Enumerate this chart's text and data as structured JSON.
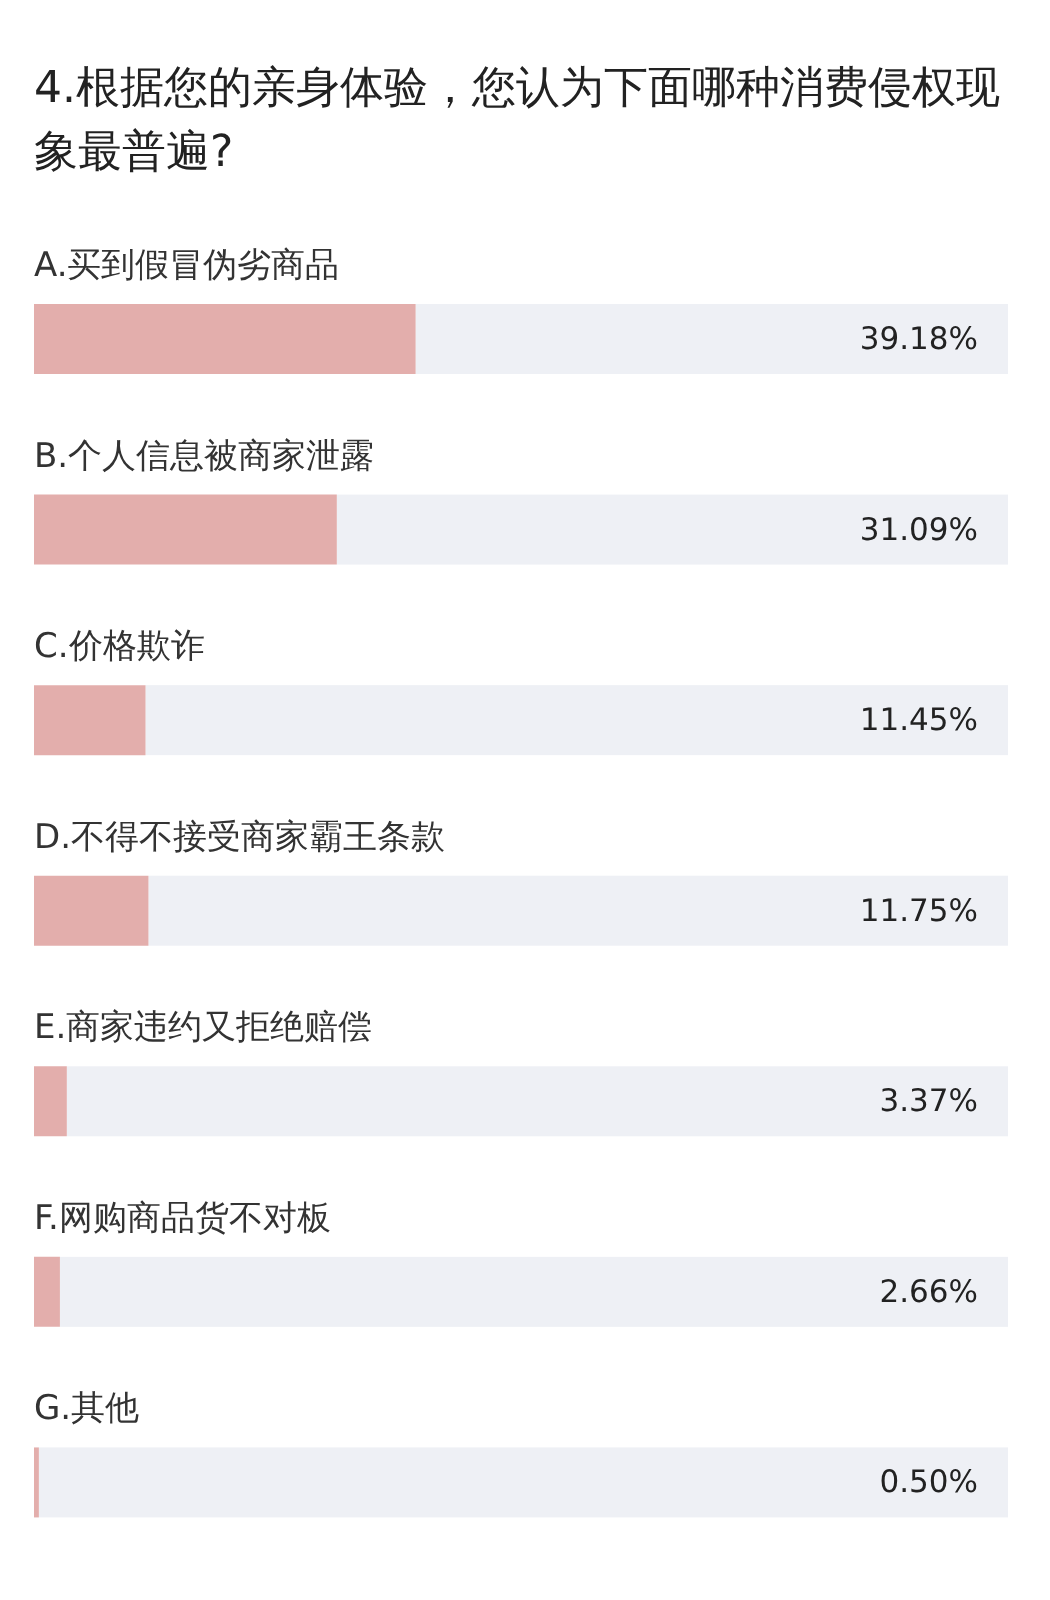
{
  "chart_data": {
    "type": "bar",
    "orientation": "horizontal",
    "title": "4.根据您的亲身体验，您认为下面哪种消费侵权现象最普遍?",
    "categories": [
      "A.买到假冒伪劣商品",
      "B.个人信息被商家泄露",
      "C.价格欺诈",
      "D.不得不接受商家霸王条款",
      "E.商家违约又拒绝赔偿",
      "F.网购商品货不对板",
      "G.其他"
    ],
    "values": [
      39.18,
      31.09,
      11.45,
      11.75,
      3.37,
      2.66,
      0.5
    ],
    "value_labels": [
      "39.18%",
      "31.09%",
      "11.45%",
      "11.75%",
      "3.37%",
      "2.66%",
      "0.50%"
    ],
    "color": "#e3aeac",
    "xlim": [
      0,
      100
    ],
    "tick_labels": "y"
  }
}
